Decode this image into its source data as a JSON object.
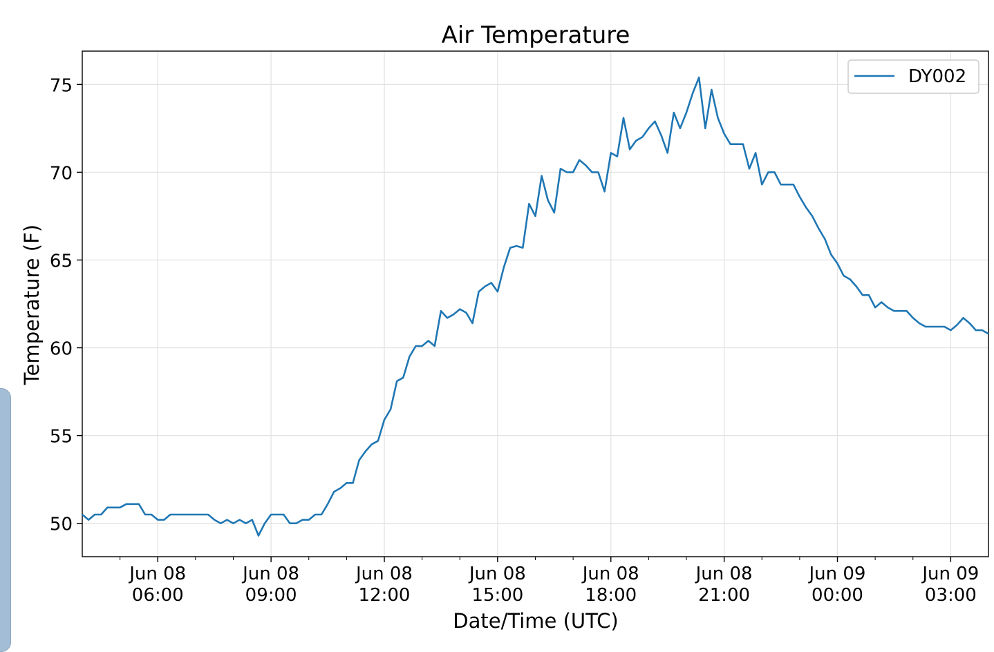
{
  "chart_data": {
    "type": "line",
    "title": "Air Temperature",
    "xlabel": "Date/Time (UTC)",
    "ylabel": "Temperature (F)",
    "x_range": [
      "2018-06-08 04:00",
      "2018-06-09 04:00"
    ],
    "ylim": [
      48.1,
      76.9
    ],
    "yticks": [
      50,
      55,
      60,
      65,
      70,
      75
    ],
    "ytick_labels": [
      "50",
      "55",
      "60",
      "65",
      "70",
      "75"
    ],
    "xticks": [
      {
        "time": "2018-06-08 06:00",
        "line1": "Jun 08",
        "line2": "06:00"
      },
      {
        "time": "2018-06-08 09:00",
        "line1": "Jun 08",
        "line2": "09:00"
      },
      {
        "time": "2018-06-08 12:00",
        "line1": "Jun 08",
        "line2": "12:00"
      },
      {
        "time": "2018-06-08 15:00",
        "line1": "Jun 08",
        "line2": "15:00"
      },
      {
        "time": "2018-06-08 18:00",
        "line1": "Jun 08",
        "line2": "18:00"
      },
      {
        "time": "2018-06-08 21:00",
        "line1": "Jun 08",
        "line2": "21:00"
      },
      {
        "time": "2018-06-09 00:00",
        "line1": "Jun 09",
        "line2": "00:00"
      },
      {
        "time": "2018-06-09 03:00",
        "line1": "Jun 09",
        "line2": "03:00"
      }
    ],
    "grid": true,
    "legend": "top-right",
    "series": [
      {
        "name": "DY002",
        "color": "#1f77b4",
        "x": [
          "2018-06-08 04:00",
          "2018-06-08 04:10",
          "2018-06-08 04:20",
          "2018-06-08 04:30",
          "2018-06-08 04:40",
          "2018-06-08 04:50",
          "2018-06-08 05:00",
          "2018-06-08 05:10",
          "2018-06-08 05:20",
          "2018-06-08 05:30",
          "2018-06-08 05:40",
          "2018-06-08 05:50",
          "2018-06-08 06:00",
          "2018-06-08 06:10",
          "2018-06-08 06:20",
          "2018-06-08 06:30",
          "2018-06-08 06:40",
          "2018-06-08 06:50",
          "2018-06-08 07:00",
          "2018-06-08 07:10",
          "2018-06-08 07:20",
          "2018-06-08 07:30",
          "2018-06-08 07:40",
          "2018-06-08 07:50",
          "2018-06-08 08:00",
          "2018-06-08 08:10",
          "2018-06-08 08:20",
          "2018-06-08 08:30",
          "2018-06-08 08:40",
          "2018-06-08 08:50",
          "2018-06-08 09:00",
          "2018-06-08 09:10",
          "2018-06-08 09:20",
          "2018-06-08 09:30",
          "2018-06-08 09:40",
          "2018-06-08 09:50",
          "2018-06-08 10:00",
          "2018-06-08 10:10",
          "2018-06-08 10:20",
          "2018-06-08 10:30",
          "2018-06-08 10:40",
          "2018-06-08 10:50",
          "2018-06-08 11:00",
          "2018-06-08 11:10",
          "2018-06-08 11:20",
          "2018-06-08 11:30",
          "2018-06-08 11:40",
          "2018-06-08 11:50",
          "2018-06-08 12:00",
          "2018-06-08 12:10",
          "2018-06-08 12:20",
          "2018-06-08 12:30",
          "2018-06-08 12:40",
          "2018-06-08 12:50",
          "2018-06-08 13:00",
          "2018-06-08 13:10",
          "2018-06-08 13:20",
          "2018-06-08 13:30",
          "2018-06-08 13:40",
          "2018-06-08 13:50",
          "2018-06-08 14:00",
          "2018-06-08 14:10",
          "2018-06-08 14:20",
          "2018-06-08 14:30",
          "2018-06-08 14:40",
          "2018-06-08 14:50",
          "2018-06-08 15:00",
          "2018-06-08 15:10",
          "2018-06-08 15:20",
          "2018-06-08 15:30",
          "2018-06-08 15:40",
          "2018-06-08 15:50",
          "2018-06-08 16:00",
          "2018-06-08 16:10",
          "2018-06-08 16:20",
          "2018-06-08 16:30",
          "2018-06-08 16:40",
          "2018-06-08 16:50",
          "2018-06-08 17:00",
          "2018-06-08 17:10",
          "2018-06-08 17:20",
          "2018-06-08 17:30",
          "2018-06-08 17:40",
          "2018-06-08 17:50",
          "2018-06-08 18:00",
          "2018-06-08 18:10",
          "2018-06-08 18:20",
          "2018-06-08 18:30",
          "2018-06-08 18:40",
          "2018-06-08 18:50",
          "2018-06-08 19:00",
          "2018-06-08 19:10",
          "2018-06-08 19:20",
          "2018-06-08 19:30",
          "2018-06-08 19:40",
          "2018-06-08 19:50",
          "2018-06-08 20:00",
          "2018-06-08 20:10",
          "2018-06-08 20:20",
          "2018-06-08 20:30",
          "2018-06-08 20:40",
          "2018-06-08 20:50",
          "2018-06-08 21:00",
          "2018-06-08 21:10",
          "2018-06-08 21:20",
          "2018-06-08 21:30",
          "2018-06-08 21:40",
          "2018-06-08 21:50",
          "2018-06-08 22:00",
          "2018-06-08 22:10",
          "2018-06-08 22:20",
          "2018-06-08 22:30",
          "2018-06-08 22:40",
          "2018-06-08 22:50",
          "2018-06-08 23:00",
          "2018-06-08 23:10",
          "2018-06-08 23:20",
          "2018-06-08 23:30",
          "2018-06-08 23:40",
          "2018-06-08 23:50",
          "2018-06-09 00:00",
          "2018-06-09 00:10",
          "2018-06-09 00:20",
          "2018-06-09 00:30",
          "2018-06-09 00:40",
          "2018-06-09 00:50",
          "2018-06-09 01:00",
          "2018-06-09 01:10",
          "2018-06-09 01:20",
          "2018-06-09 01:30",
          "2018-06-09 01:40",
          "2018-06-09 01:50",
          "2018-06-09 02:00",
          "2018-06-09 02:10",
          "2018-06-09 02:20",
          "2018-06-09 02:30",
          "2018-06-09 02:40",
          "2018-06-09 02:50",
          "2018-06-09 03:00",
          "2018-06-09 03:10",
          "2018-06-09 03:20",
          "2018-06-09 03:30",
          "2018-06-09 03:40",
          "2018-06-09 03:50",
          "2018-06-09 04:00"
        ],
        "y": [
          50.5,
          50.2,
          50.5,
          50.5,
          50.9,
          50.9,
          50.9,
          51.1,
          51.1,
          51.1,
          50.5,
          50.5,
          50.2,
          50.2,
          50.5,
          50.5,
          50.5,
          50.5,
          50.5,
          50.5,
          50.5,
          50.2,
          50.0,
          50.2,
          50.0,
          50.2,
          50.0,
          50.2,
          49.3,
          50.0,
          50.5,
          50.5,
          50.5,
          50.0,
          50.0,
          50.2,
          50.2,
          50.5,
          50.5,
          51.1,
          51.8,
          52.0,
          52.3,
          52.3,
          53.6,
          54.1,
          54.5,
          54.7,
          55.9,
          56.5,
          58.1,
          58.3,
          59.5,
          60.1,
          60.1,
          60.4,
          60.1,
          62.1,
          61.7,
          61.9,
          62.2,
          62.0,
          61.4,
          63.2,
          63.5,
          63.7,
          63.2,
          64.6,
          65.7,
          65.8,
          65.7,
          68.2,
          67.5,
          69.8,
          68.4,
          67.7,
          70.2,
          70.0,
          70.0,
          70.7,
          70.4,
          70.0,
          70.0,
          68.9,
          71.1,
          70.9,
          73.1,
          71.3,
          71.8,
          72.0,
          72.5,
          72.9,
          72.1,
          71.1,
          73.4,
          72.5,
          73.4,
          74.5,
          75.4,
          72.5,
          74.7,
          73.1,
          72.2,
          71.6,
          71.6,
          71.6,
          70.2,
          71.1,
          69.3,
          70.0,
          70.0,
          69.3,
          69.3,
          69.3,
          68.6,
          68.0,
          67.5,
          66.8,
          66.2,
          65.3,
          64.8,
          64.1,
          63.9,
          63.5,
          63.0,
          63.0,
          62.3,
          62.6,
          62.3,
          62.1,
          62.1,
          62.1,
          61.7,
          61.4,
          61.2,
          61.2,
          61.2,
          61.2,
          61.0,
          61.3,
          61.7,
          61.4,
          61.0,
          61.0,
          60.8
        ]
      }
    ]
  }
}
